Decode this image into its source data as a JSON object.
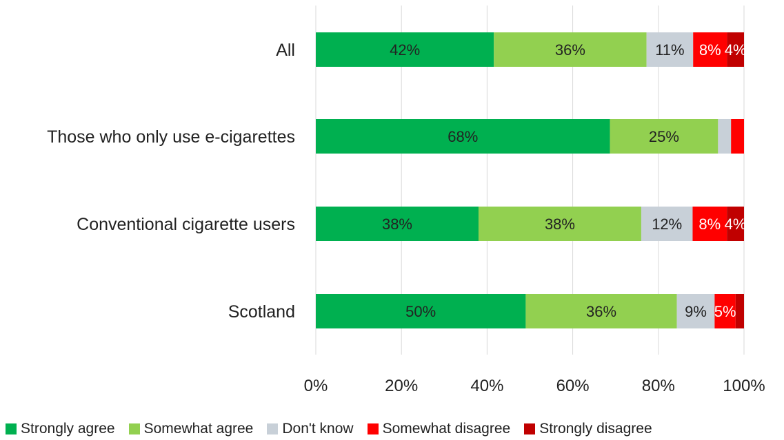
{
  "chart_data": {
    "type": "bar",
    "orientation": "horizontal",
    "stacked": true,
    "title": "",
    "xlabel": "",
    "ylabel": "",
    "xlim": [
      0,
      100
    ],
    "x_ticks": [
      "0%",
      "20%",
      "40%",
      "60%",
      "80%",
      "100%"
    ],
    "x_tick_values": [
      0,
      20,
      40,
      60,
      80,
      100
    ],
    "grid": "vertical",
    "legend_position": "bottom",
    "categories": [
      "All",
      "Those who only use e-cigarettes",
      "Conventional cigarette users",
      "Scotland"
    ],
    "series": [
      {
        "name": "Strongly agree",
        "color": "#00b050",
        "values": [
          42,
          68,
          38,
          50
        ],
        "labels": [
          "42%",
          "68%",
          "38%",
          "50%"
        ]
      },
      {
        "name": "Somewhat agree",
        "color": "#92d050",
        "values": [
          36,
          25,
          38,
          36
        ],
        "labels": [
          "36%",
          "25%",
          "38%",
          "36%"
        ]
      },
      {
        "name": "Don't know",
        "color": "#c8d0d8",
        "values": [
          11,
          3,
          12,
          9
        ],
        "labels": [
          "11%",
          "",
          "12%",
          "9%"
        ]
      },
      {
        "name": "Somewhat disagree",
        "color": "#ff0000",
        "values": [
          8,
          3,
          8,
          5
        ],
        "labels": [
          "8%",
          "",
          "8%",
          "5%"
        ]
      },
      {
        "name": "Strongly disagree",
        "color": "#c00000",
        "values": [
          4,
          0,
          4,
          2
        ],
        "labels": [
          "4%",
          "",
          "4%",
          ""
        ]
      }
    ]
  }
}
